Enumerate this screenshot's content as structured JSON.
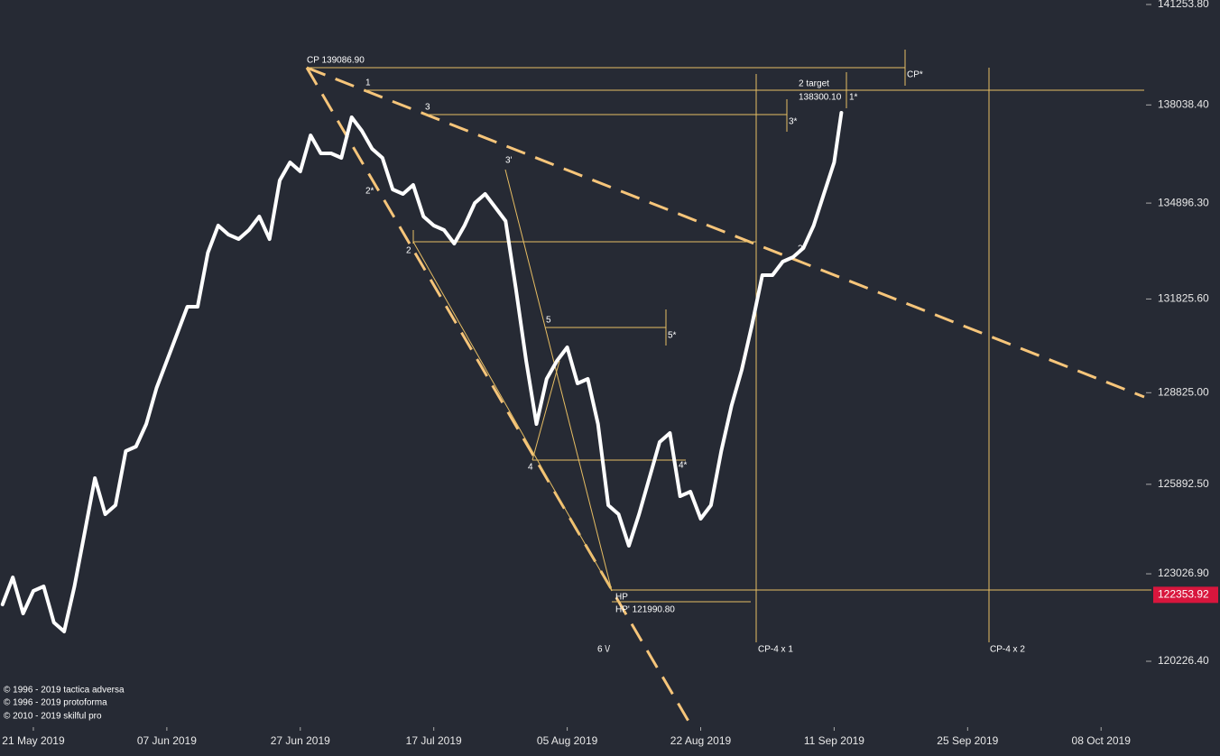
{
  "chart_data": {
    "type": "line",
    "series": [
      {
        "name": "price",
        "color": "#ffffff",
        "x": [
          -3,
          -2,
          -1,
          0,
          1,
          2,
          3,
          4,
          5,
          6,
          7,
          8,
          9,
          10,
          11,
          12,
          13,
          14,
          15,
          16,
          17,
          18,
          19,
          20,
          21,
          22,
          23,
          24,
          25,
          26,
          27,
          28,
          29,
          30,
          31,
          32,
          33,
          34,
          35,
          36,
          37,
          38,
          39,
          40,
          41,
          42,
          43,
          44,
          45,
          46,
          47,
          48,
          49,
          50,
          51,
          52,
          53,
          54,
          55,
          56,
          57,
          58,
          59,
          60,
          61,
          62,
          63,
          64,
          65,
          66,
          67,
          68,
          69,
          70,
          71,
          72,
          73,
          74,
          75,
          76,
          77,
          78,
          78.7
        ],
        "values": [
          122046,
          122913,
          121757,
          122479,
          122624,
          121468,
          121180,
          122624,
          124357,
          126090,
          124935,
          125223,
          126956,
          127101,
          127823,
          128978,
          129845,
          130711,
          131578,
          131578,
          133311,
          134177,
          133889,
          133744,
          134033,
          134466,
          133744,
          135622,
          136199,
          135910,
          137066,
          136488,
          136488,
          136344,
          137643,
          137210,
          136633,
          136344,
          135333,
          135188,
          135477,
          134466,
          134177,
          134033,
          133600,
          134177,
          134900,
          135188,
          134755,
          134322,
          132156,
          129845,
          127823,
          129267,
          129845,
          130278,
          129123,
          129267,
          127823,
          125223,
          124935,
          123924,
          124935,
          126090,
          127245,
          127534,
          125512,
          125657,
          124790,
          125223,
          126956,
          128401,
          129556,
          131000,
          132589,
          132589,
          133022,
          133167,
          133455,
          134177,
          135188,
          136199,
          137788
        ]
      }
    ],
    "xlim": [
      -3.25,
      108.2
    ],
    "xticks": [
      {
        "value": 0,
        "label": "21 May 2019"
      },
      {
        "value": 13,
        "label": "07 Jun 2019"
      },
      {
        "value": 26,
        "label": "27 Jun 2019"
      },
      {
        "value": 39,
        "label": "17 Jul 2019"
      },
      {
        "value": 52,
        "label": "05 Aug 2019"
      },
      {
        "value": 65,
        "label": "22 Aug 2019"
      },
      {
        "value": 78,
        "label": "11 Sep 2019"
      },
      {
        "value": 91,
        "label": "25 Sep 2019"
      },
      {
        "value": 104,
        "label": "08 Oct 2019"
      }
    ],
    "ylim": [
      118147,
      141398
    ],
    "yticks": [
      {
        "value": 141253.8,
        "label": "141253.80"
      },
      {
        "value": 138038.4,
        "label": "138038.40"
      },
      {
        "value": 134896.3,
        "label": "134896.30"
      },
      {
        "value": 131825.6,
        "label": "131825.60"
      },
      {
        "value": 128825,
        "label": "128825.00"
      },
      {
        "value": 125892.5,
        "label": "125892.50"
      },
      {
        "value": 123026.9,
        "label": "123026.90"
      },
      {
        "value": 120226.4,
        "label": "120226.40"
      }
    ],
    "current_price": {
      "value": 122353.92,
      "label": "122353.92",
      "color": "#d8163d"
    },
    "annotations": [
      "CP 139086.90",
      "1",
      "2 target",
      "138300.10",
      "1*",
      "CP*",
      "3",
      "3*",
      "3'",
      "2*",
      "2",
      "5",
      "5*",
      "4",
      "4*",
      "HP",
      "HP' 121990.80",
      "6 \\/",
      "CP-4 x 1",
      "CP-4 x 2",
      "2"
    ],
    "credits": [
      "© 1996 - 2019 tactica adversa",
      "© 1996 - 2019 protoforma",
      "© 2010 - 2019 skilful pro"
    ]
  }
}
